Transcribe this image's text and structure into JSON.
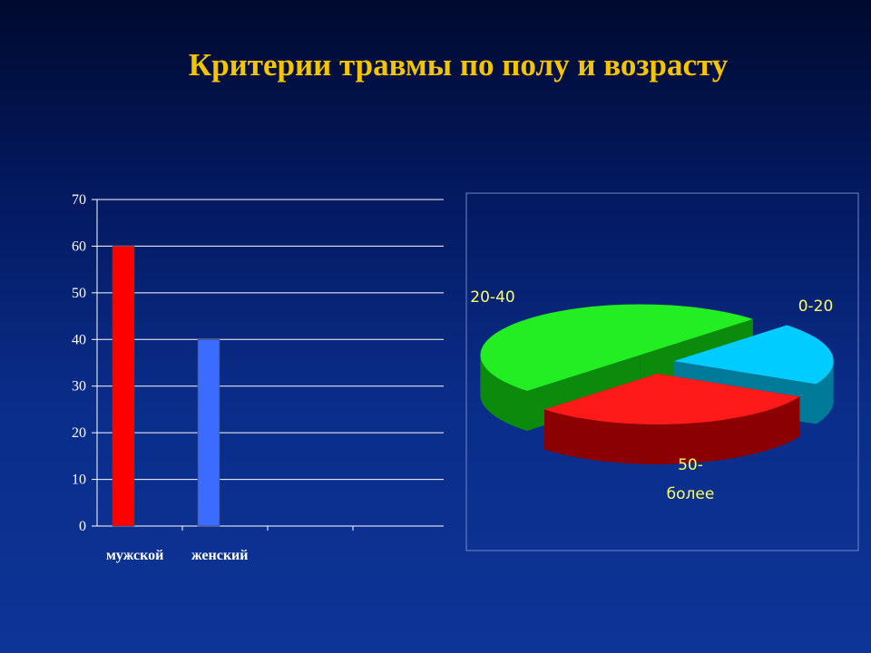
{
  "slide": {
    "title": "Критерии травмы по полу и возрасту"
  },
  "chart_data": [
    {
      "type": "bar",
      "categories": [
        "мужской",
        "женский",
        ""
      ],
      "values": [
        60,
        40,
        null
      ],
      "ylim": [
        0,
        70
      ],
      "yticks": [
        0,
        10,
        20,
        30,
        40,
        50,
        60,
        70
      ],
      "grid": true,
      "bar_colors": [
        "#ff0000",
        "#3b6cff"
      ],
      "title": "",
      "xlabel": "",
      "ylabel": ""
    },
    {
      "type": "pie",
      "three_d": true,
      "slices": [
        {
          "label": "0-20",
          "value": 20,
          "color": "#00ccff",
          "side_color": "#007a99"
        },
        {
          "label": "50-более",
          "label_lines": [
            "50-",
            "более"
          ],
          "value": 30,
          "color": "#ff1a1a",
          "side_color": "#8b0000"
        },
        {
          "label": "20-40",
          "value": 50,
          "color": "#22ee22",
          "side_color": "#0b8a0b"
        }
      ],
      "title": ""
    }
  ]
}
